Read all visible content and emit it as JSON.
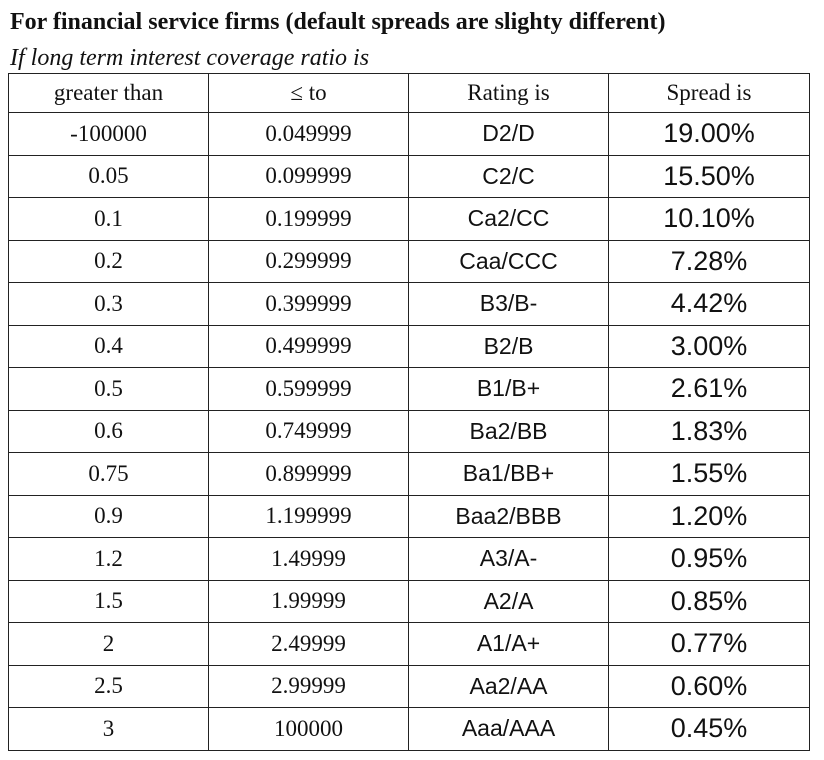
{
  "document": {
    "title": "For financial service firms (default spreads are slighty different)",
    "subtitle": "If long term interest coverage ratio is"
  },
  "table": {
    "headers": {
      "greater_than": "greater than",
      "lte": "≤ to",
      "rating": "Rating is",
      "spread": "Spread is"
    },
    "rows": [
      {
        "gt": "-100000",
        "lte": "0.049999",
        "rating": "D2/D",
        "spread": "19.00%"
      },
      {
        "gt": "0.05",
        "lte": "0.099999",
        "rating": "C2/C",
        "spread": "15.50%"
      },
      {
        "gt": "0.1",
        "lte": "0.199999",
        "rating": "Ca2/CC",
        "spread": "10.10%"
      },
      {
        "gt": "0.2",
        "lte": "0.299999",
        "rating": "Caa/CCC",
        "spread": "7.28%"
      },
      {
        "gt": "0.3",
        "lte": "0.399999",
        "rating": "B3/B-",
        "spread": "4.42%"
      },
      {
        "gt": "0.4",
        "lte": "0.499999",
        "rating": "B2/B",
        "spread": "3.00%"
      },
      {
        "gt": "0.5",
        "lte": "0.599999",
        "rating": "B1/B+",
        "spread": "2.61%"
      },
      {
        "gt": "0.6",
        "lte": "0.749999",
        "rating": "Ba2/BB",
        "spread": "1.83%"
      },
      {
        "gt": "0.75",
        "lte": "0.899999",
        "rating": "Ba1/BB+",
        "spread": "1.55%"
      },
      {
        "gt": "0.9",
        "lte": "1.199999",
        "rating": "Baa2/BBB",
        "spread": "1.20%"
      },
      {
        "gt": "1.2",
        "lte": "1.49999",
        "rating": "A3/A-",
        "spread": "0.95%"
      },
      {
        "gt": "1.5",
        "lte": "1.99999",
        "rating": "A2/A",
        "spread": "0.85%"
      },
      {
        "gt": "2",
        "lte": "2.49999",
        "rating": "A1/A+",
        "spread": "0.77%"
      },
      {
        "gt": "2.5",
        "lte": "2.99999",
        "rating": "Aa2/AA",
        "spread": "0.60%"
      },
      {
        "gt": "3",
        "lte": "100000",
        "rating": "Aaa/AAA",
        "spread": "0.45%"
      }
    ]
  }
}
